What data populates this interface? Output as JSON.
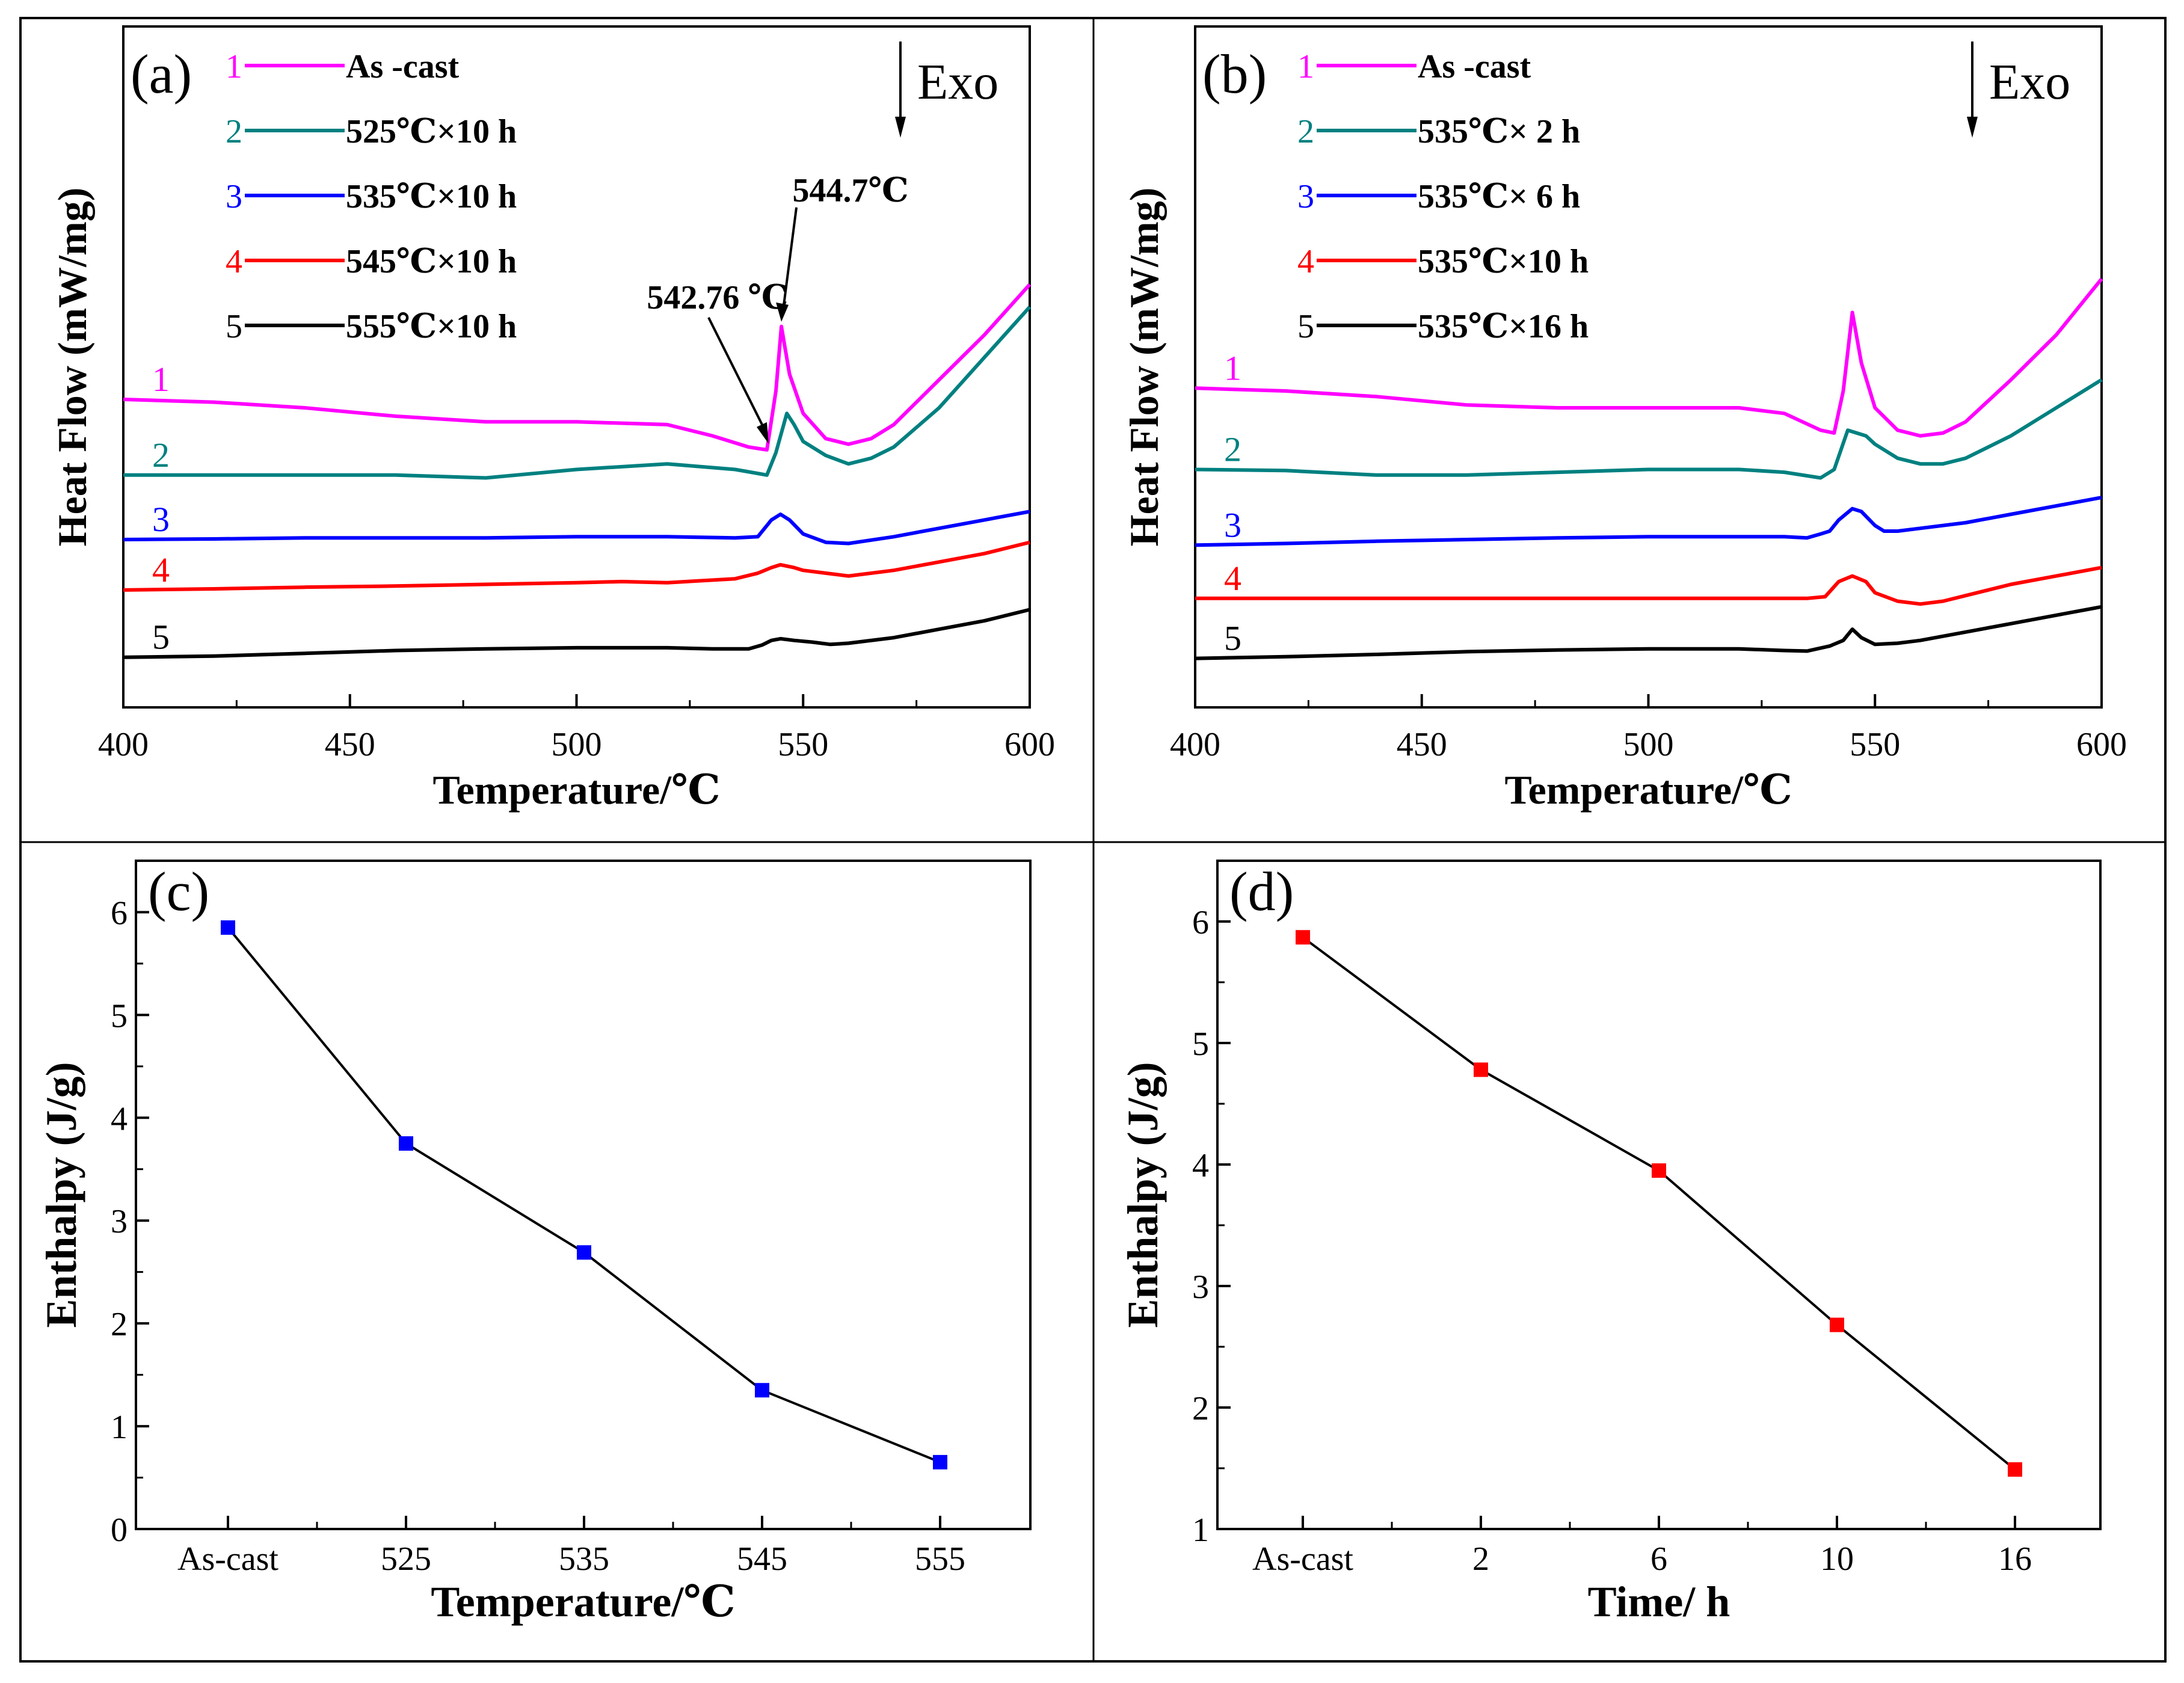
{
  "chart_data": [
    {
      "panel": "(a)",
      "type": "line",
      "xlabel": "Temperature/℃",
      "ylabel": "Heat Flow (mW/mg)",
      "xlim": [
        400,
        600
      ],
      "xticks": [
        "400",
        "450",
        "500",
        "550",
        "600"
      ],
      "exo_label": "Exo",
      "annotations": [
        {
          "text": "544.7℃",
          "x": 544.7
        },
        {
          "text": "542.76 ℃",
          "x": 542.76
        }
      ],
      "legend": [
        {
          "num": "1",
          "label": "As -cast",
          "color": "#ff00ff"
        },
        {
          "num": "2",
          "label": "525℃×10 h",
          "color": "#008080"
        },
        {
          "num": "3",
          "label": "535℃×10 h",
          "color": "#0000ff"
        },
        {
          "num": "4",
          "label": "545℃×10 h",
          "color": "#ff0000"
        },
        {
          "num": "5",
          "label": "555℃×10 h",
          "color": "#000000"
        }
      ],
      "series": [
        {
          "name": "1",
          "color": "#ff00ff",
          "x": [
            400,
            420,
            440,
            460,
            480,
            500,
            520,
            530,
            538,
            542,
            544,
            545.2,
            547,
            550,
            555,
            560,
            565,
            570,
            580,
            590,
            600
          ],
          "y": [
            0.485,
            0.48,
            0.47,
            0.455,
            0.445,
            0.445,
            0.44,
            0.42,
            0.4,
            0.395,
            0.5,
            0.615,
            0.53,
            0.46,
            0.415,
            0.405,
            0.415,
            0.44,
            0.52,
            0.6,
            0.69
          ]
        },
        {
          "name": "2",
          "color": "#008080",
          "x": [
            400,
            420,
            440,
            460,
            480,
            500,
            520,
            535,
            542,
            544,
            546.4,
            548,
            550,
            555,
            560,
            565,
            570,
            580,
            590,
            600
          ],
          "y": [
            0.35,
            0.35,
            0.35,
            0.35,
            0.345,
            0.36,
            0.37,
            0.36,
            0.35,
            0.39,
            0.46,
            0.44,
            0.41,
            0.385,
            0.37,
            0.38,
            0.4,
            0.47,
            0.56,
            0.65
          ]
        },
        {
          "name": "3",
          "color": "#0000ff",
          "x": [
            400,
            420,
            440,
            460,
            480,
            500,
            520,
            535,
            540,
            543,
            545,
            547,
            550,
            555,
            560,
            570,
            580,
            590,
            600
          ],
          "y": [
            0.235,
            0.236,
            0.238,
            0.238,
            0.238,
            0.24,
            0.24,
            0.238,
            0.24,
            0.27,
            0.28,
            0.27,
            0.245,
            0.23,
            0.228,
            0.24,
            0.255,
            0.27,
            0.285
          ]
        },
        {
          "name": "4",
          "color": "#ff0000",
          "x": [
            400,
            420,
            440,
            460,
            480,
            500,
            510,
            520,
            535,
            540,
            543,
            545,
            548,
            550,
            555,
            560,
            570,
            580,
            590,
            600
          ],
          "y": [
            0.145,
            0.147,
            0.15,
            0.152,
            0.155,
            0.158,
            0.16,
            0.158,
            0.165,
            0.175,
            0.185,
            0.19,
            0.185,
            0.18,
            0.175,
            0.17,
            0.18,
            0.195,
            0.21,
            0.23
          ]
        },
        {
          "name": "5",
          "color": "#000000",
          "x": [
            400,
            420,
            440,
            460,
            480,
            500,
            520,
            530,
            538,
            541,
            543,
            545,
            548,
            552,
            556,
            560,
            570,
            580,
            590,
            600
          ],
          "y": [
            0.025,
            0.027,
            0.032,
            0.037,
            0.04,
            0.042,
            0.042,
            0.04,
            0.04,
            0.047,
            0.055,
            0.058,
            0.055,
            0.052,
            0.048,
            0.05,
            0.06,
            0.075,
            0.09,
            0.11
          ]
        }
      ]
    },
    {
      "panel": "(b)",
      "type": "line",
      "xlabel": "Temperature/℃",
      "ylabel": "Heat Flow (mW/mg)",
      "xlim": [
        400,
        600
      ],
      "xticks": [
        "400",
        "450",
        "500",
        "550",
        "600"
      ],
      "exo_label": "Exo",
      "legend": [
        {
          "num": "1",
          "label": "As -cast",
          "color": "#ff00ff"
        },
        {
          "num": "2",
          "label": "535℃× 2 h",
          "color": "#008080"
        },
        {
          "num": "3",
          "label": "535℃× 6 h",
          "color": "#0000ff"
        },
        {
          "num": "4",
          "label": "535℃×10 h",
          "color": "#ff0000"
        },
        {
          "num": "5",
          "label": "535℃×16 h",
          "color": "#000000"
        }
      ],
      "series": [
        {
          "name": "1",
          "color": "#ff00ff",
          "x": [
            400,
            420,
            440,
            460,
            480,
            500,
            520,
            530,
            538,
            541,
            543,
            545,
            547,
            550,
            555,
            560,
            565,
            570,
            580,
            590,
            600
          ],
          "y": [
            0.505,
            0.5,
            0.49,
            0.475,
            0.47,
            0.47,
            0.47,
            0.46,
            0.43,
            0.425,
            0.5,
            0.64,
            0.55,
            0.47,
            0.43,
            0.42,
            0.425,
            0.445,
            0.52,
            0.6,
            0.7
          ]
        },
        {
          "name": "2",
          "color": "#008080",
          "x": [
            400,
            420,
            440,
            460,
            480,
            500,
            520,
            530,
            538,
            541,
            544,
            548,
            550,
            555,
            560,
            565,
            570,
            580,
            590,
            600
          ],
          "y": [
            0.36,
            0.358,
            0.35,
            0.35,
            0.355,
            0.36,
            0.36,
            0.355,
            0.345,
            0.36,
            0.43,
            0.42,
            0.405,
            0.38,
            0.37,
            0.37,
            0.38,
            0.42,
            0.47,
            0.52
          ]
        },
        {
          "name": "3",
          "color": "#0000ff",
          "x": [
            400,
            420,
            440,
            460,
            480,
            500,
            520,
            530,
            535,
            538,
            540,
            542,
            545,
            547,
            550,
            552,
            555,
            560,
            570,
            580,
            590,
            600
          ],
          "y": [
            0.225,
            0.228,
            0.232,
            0.235,
            0.238,
            0.24,
            0.24,
            0.24,
            0.238,
            0.245,
            0.25,
            0.27,
            0.29,
            0.285,
            0.26,
            0.25,
            0.25,
            0.255,
            0.265,
            0.28,
            0.295,
            0.31
          ]
        },
        {
          "name": "4",
          "color": "#ff0000",
          "x": [
            400,
            420,
            440,
            460,
            480,
            500,
            520,
            535,
            539,
            542,
            545,
            548,
            550,
            555,
            560,
            565,
            570,
            580,
            590,
            600
          ],
          "y": [
            0.13,
            0.13,
            0.13,
            0.13,
            0.13,
            0.13,
            0.13,
            0.13,
            0.133,
            0.16,
            0.17,
            0.16,
            0.14,
            0.125,
            0.12,
            0.125,
            0.135,
            0.155,
            0.17,
            0.185
          ]
        },
        {
          "name": "5",
          "color": "#000000",
          "x": [
            400,
            420,
            440,
            460,
            480,
            500,
            520,
            530,
            535,
            540,
            543,
            545,
            547,
            550,
            555,
            560,
            570,
            580,
            590,
            600
          ],
          "y": [
            0.023,
            0.026,
            0.03,
            0.035,
            0.038,
            0.04,
            0.04,
            0.037,
            0.036,
            0.045,
            0.055,
            0.075,
            0.06,
            0.048,
            0.05,
            0.055,
            0.07,
            0.085,
            0.1,
            0.115
          ]
        }
      ]
    },
    {
      "panel": "(c)",
      "type": "line",
      "xlabel": "Temperature/℃",
      "ylabel": "Enthalpy (J/g)",
      "categories": [
        "As-cast",
        "525",
        "535",
        "545",
        "555"
      ],
      "values": [
        5.85,
        3.75,
        2.69,
        1.35,
        0.65
      ],
      "ylim": [
        0,
        6.5
      ],
      "yticks": [
        "0",
        "1",
        "2",
        "3",
        "4",
        "5",
        "6"
      ],
      "marker_color": "#0000ff"
    },
    {
      "panel": "(d)",
      "type": "line",
      "xlabel": "Time/  h",
      "ylabel": "Enthalpy (J/g)",
      "categories": [
        "As-cast",
        "2",
        "6",
        "10",
        "16"
      ],
      "values": [
        5.87,
        4.78,
        3.95,
        2.68,
        1.49
      ],
      "ylim": [
        1,
        6.5
      ],
      "yticks": [
        "1",
        "2",
        "3",
        "4",
        "5",
        "6"
      ],
      "marker_color": "#ff0000"
    }
  ]
}
